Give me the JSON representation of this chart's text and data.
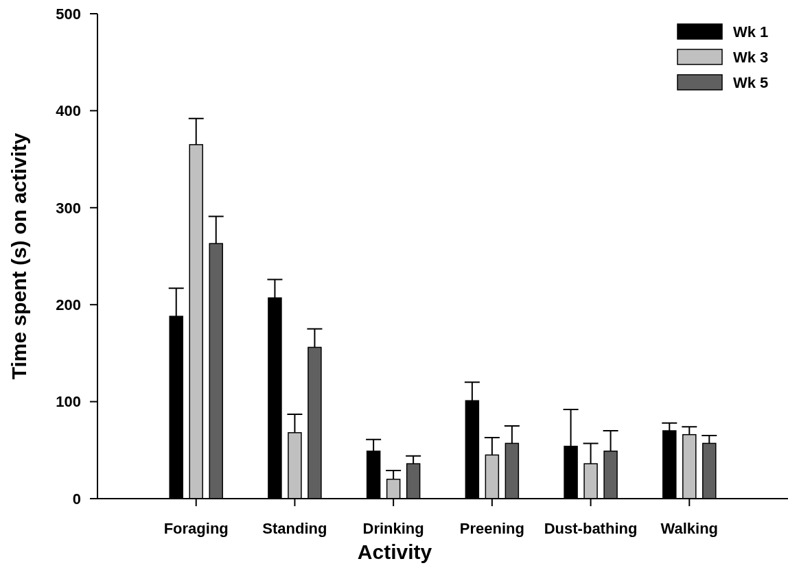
{
  "chart_data": {
    "type": "bar",
    "xlabel": "Activity",
    "ylabel": "Time spent (s) on activity",
    "categories": [
      "Foraging",
      "Standing",
      "Drinking",
      "Preening",
      "Dust-bathing",
      "Walking"
    ],
    "series": [
      {
        "name": "Wk 1",
        "color": "#000000",
        "values": [
          188,
          207,
          49,
          101,
          54,
          70
        ],
        "errors": [
          [
            188,
            217
          ],
          [
            207,
            226
          ],
          [
            49,
            61
          ],
          [
            101,
            120
          ],
          [
            54,
            92
          ],
          [
            70,
            78
          ]
        ]
      },
      {
        "name": "Wk 3",
        "color": "#c0c0c0",
        "values": [
          365,
          68,
          20,
          45,
          36,
          66
        ],
        "errors": [
          [
            365,
            392
          ],
          [
            68,
            87
          ],
          [
            20,
            29
          ],
          [
            45,
            63
          ],
          [
            36,
            57
          ],
          [
            66,
            74
          ]
        ]
      },
      {
        "name": "Wk 5",
        "color": "#606060",
        "values": [
          263,
          156,
          36,
          57,
          49,
          57
        ],
        "errors": [
          [
            263,
            291
          ],
          [
            156,
            175
          ],
          [
            36,
            44
          ],
          [
            57,
            75
          ],
          [
            49,
            70
          ],
          [
            57,
            65
          ]
        ]
      }
    ],
    "ylim": [
      0,
      500
    ],
    "yticks": [
      0,
      100,
      200,
      300,
      400,
      500
    ],
    "grid": false,
    "legend": "top right"
  }
}
